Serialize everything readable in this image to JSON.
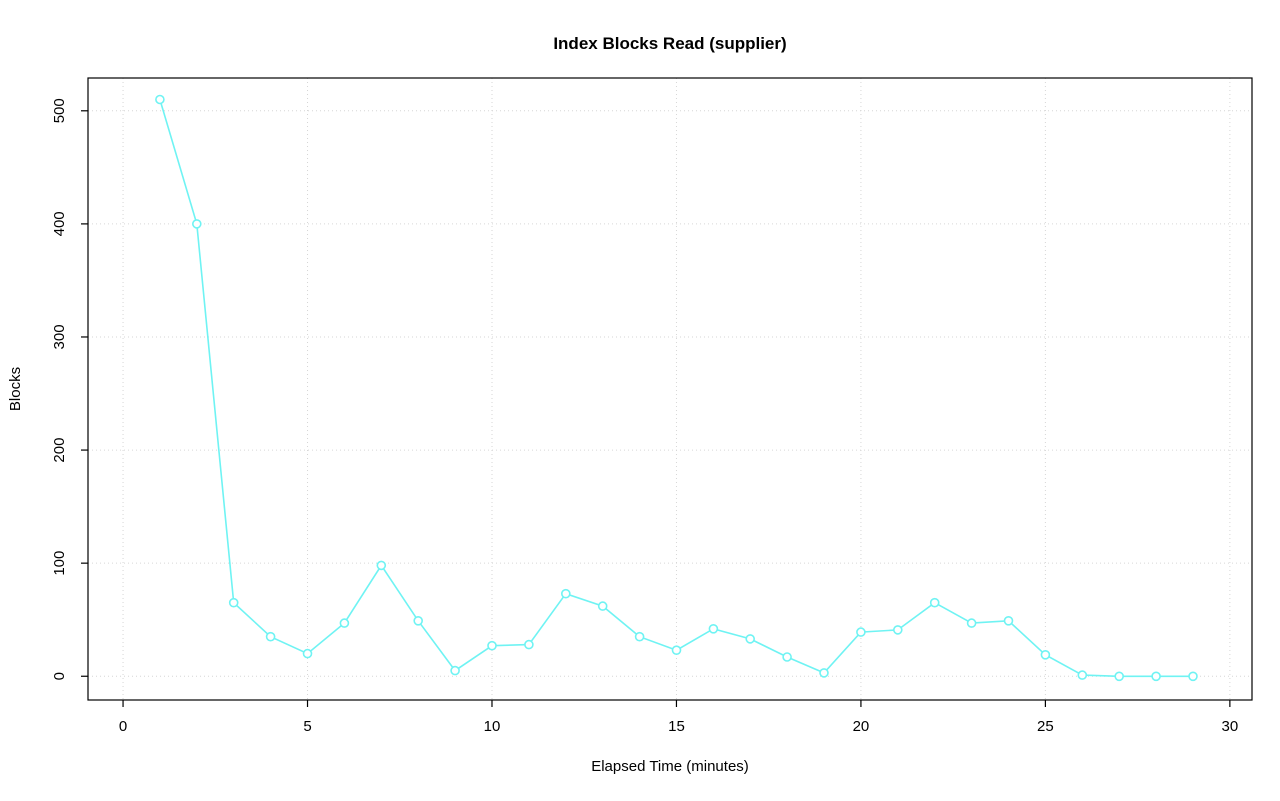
{
  "chart_data": {
    "type": "line",
    "title": "Index Blocks Read (supplier)",
    "xlabel": "Elapsed Time (minutes)",
    "ylabel": "Blocks",
    "x": [
      1,
      2,
      3,
      4,
      5,
      6,
      7,
      8,
      9,
      10,
      11,
      12,
      13,
      14,
      15,
      16,
      17,
      18,
      19,
      20,
      21,
      22,
      23,
      24,
      25,
      26,
      27,
      28,
      29
    ],
    "values": [
      510,
      400,
      65,
      35,
      20,
      47,
      98,
      49,
      5,
      27,
      28,
      73,
      62,
      35,
      23,
      42,
      33,
      17,
      3,
      39,
      41,
      65,
      47,
      49,
      19,
      1,
      0,
      0,
      0
    ],
    "xticks": [
      0,
      5,
      10,
      15,
      20,
      25,
      30
    ],
    "yticks": [
      0,
      100,
      200,
      300,
      400,
      500
    ],
    "xlim": [
      -0.95,
      30.6
    ],
    "ylim": [
      -21,
      529
    ],
    "grid": true,
    "grid_style": "dotted",
    "legend_position": "none",
    "series_name": "index blocks read",
    "marker": "open-circle",
    "colors": {
      "series": "#6FF3F3",
      "grid": "#D6D6D6",
      "axis": "#000000",
      "background": "#FFFFFF"
    }
  }
}
